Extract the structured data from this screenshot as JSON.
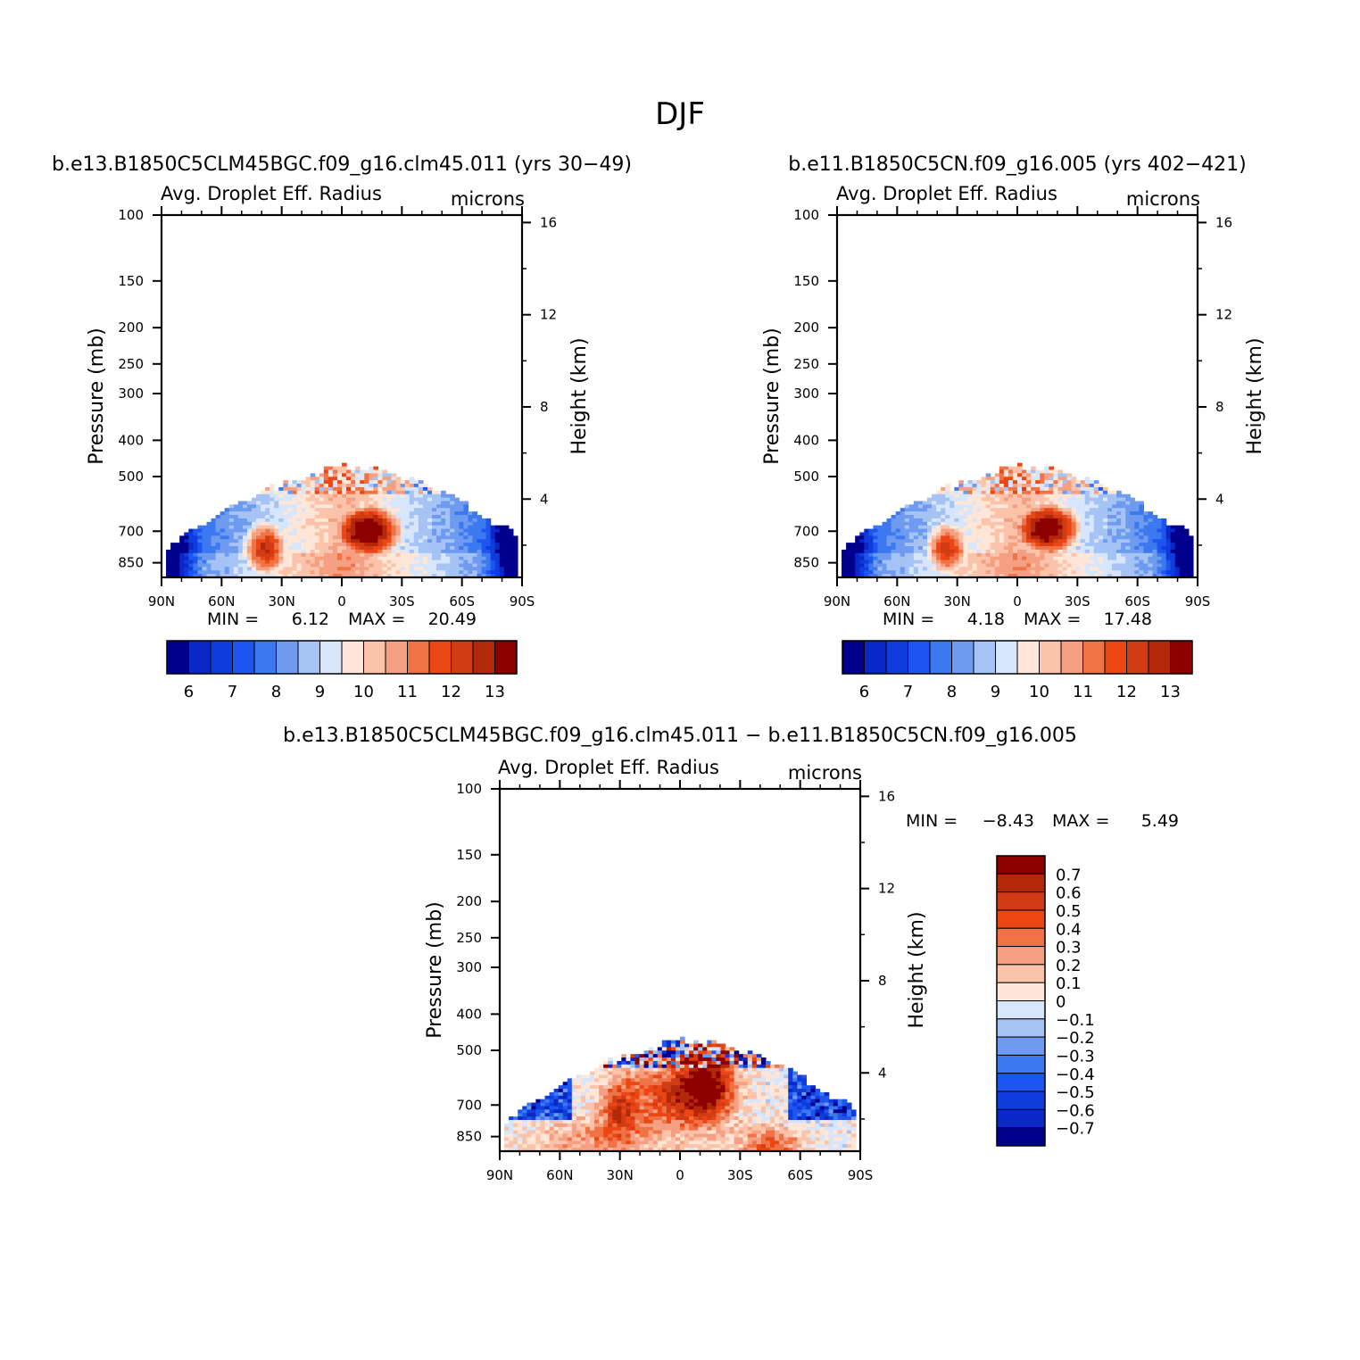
{
  "title": "DJF",
  "panels": [
    {
      "id": "left",
      "case_title": "b.e13.B1850C5CLM45BGC.f09_g16.clm45.011 (yrs 30−49)",
      "variable": "Avg. Droplet Eff. Radius",
      "units": "microns",
      "ylabel_left": "Pressure (mb)",
      "ylabel_right": "Height (km)",
      "min_label": "MIN =",
      "min_value": "6.12",
      "max_label": "MAX =",
      "max_value": "20.49"
    },
    {
      "id": "right",
      "case_title": "b.e11.B1850C5CN.f09_g16.005 (yrs 402−421)",
      "variable": "Avg. Droplet Eff. Radius",
      "units": "microns",
      "ylabel_left": "Pressure (mb)",
      "ylabel_right": "Height (km)",
      "min_label": "MIN =",
      "min_value": "4.18",
      "max_label": "MAX =",
      "max_value": "17.48"
    },
    {
      "id": "diff",
      "case_title": "b.e13.B1850C5CLM45BGC.f09_g16.clm45.011 − b.e11.B1850C5CN.f09_g16.005",
      "variable": "Avg. Droplet Eff. Radius",
      "units": "microns",
      "ylabel_left": "Pressure (mb)",
      "ylabel_right": "Height (km)",
      "min_label": "MIN =",
      "min_value": "−8.43",
      "max_label": "MAX =",
      "max_value": "5.49"
    }
  ],
  "chart_data": [
    {
      "type": "heatmap",
      "title": "b.e13.B1850C5CLM45BGC.f09_g16.clm45.011 (yrs 30−49)",
      "subtitle": "Avg. Droplet Eff. Radius",
      "units": "microns",
      "xlabel": "",
      "ylabel": "Pressure (mb)",
      "ylabel_right": "Height (km)",
      "x_ticks": [
        "90N",
        "60N",
        "30N",
        "0",
        "30S",
        "60S",
        "90S"
      ],
      "y_ticks": [
        100,
        150,
        200,
        250,
        300,
        400,
        500,
        700,
        850
      ],
      "y_right_ticks": [
        4,
        8,
        12,
        16
      ],
      "y_scale": "log",
      "colorbar_ticks": [
        "6",
        "7",
        "8",
        "9",
        "10",
        "11",
        "12",
        "13"
      ],
      "min": 6.12,
      "max": 20.49,
      "field": {
        "peak_lat": -13,
        "peak_p": 700,
        "peak_value": 14,
        "second_lat": 38,
        "second_value": 12.5,
        "cloud_top_mb": 450
      }
    },
    {
      "type": "heatmap",
      "title": "b.e11.B1850C5CN.f09_g16.005 (yrs 402−421)",
      "subtitle": "Avg. Droplet Eff. Radius",
      "units": "microns",
      "xlabel": "",
      "ylabel": "Pressure (mb)",
      "ylabel_right": "Height (km)",
      "x_ticks": [
        "90N",
        "60N",
        "30N",
        "0",
        "30S",
        "60S",
        "90S"
      ],
      "y_ticks": [
        100,
        150,
        200,
        250,
        300,
        400,
        500,
        700,
        850
      ],
      "y_right_ticks": [
        4,
        8,
        12,
        16
      ],
      "y_scale": "log",
      "colorbar_ticks": [
        "6",
        "7",
        "8",
        "9",
        "10",
        "11",
        "12",
        "13"
      ],
      "min": 4.18,
      "max": 17.48,
      "field": {
        "peak_lat": -15,
        "peak_p": 690,
        "peak_value": 13.8,
        "second_lat": 35,
        "second_value": 12.2,
        "cloud_top_mb": 450
      }
    },
    {
      "type": "heatmap",
      "title": "b.e13.B1850C5CLM45BGC.f09_g16.clm45.011 − b.e11.B1850C5CN.f09_g16.005",
      "subtitle": "Avg. Droplet Eff. Radius",
      "units": "microns",
      "xlabel": "",
      "ylabel": "Pressure (mb)",
      "ylabel_right": "Height (km)",
      "x_ticks": [
        "90N",
        "60N",
        "30N",
        "0",
        "30S",
        "60S",
        "90S"
      ],
      "y_ticks": [
        100,
        150,
        200,
        250,
        300,
        400,
        500,
        700,
        850
      ],
      "y_right_ticks": [
        4,
        8,
        12,
        16
      ],
      "y_scale": "log",
      "colorbar_ticks": [
        "0.7",
        "0.6",
        "0.5",
        "0.4",
        "0.3",
        "0.2",
        "0.1",
        "0",
        "−0.1",
        "−0.2",
        "−0.3",
        "−0.4",
        "−0.5",
        "−0.6",
        "−0.7"
      ],
      "min": -8.43,
      "max": 5.49,
      "field": {
        "cloud_top_mb": 450
      }
    }
  ],
  "colors": {
    "palette": [
      "#00008c",
      "#0a28c8",
      "#0f3cdc",
      "#1e55f0",
      "#3c78f0",
      "#6e9bf0",
      "#a5c3f5",
      "#d7e6fa",
      "#ffe6d7",
      "#fac3aa",
      "#f5a082",
      "#f07346",
      "#eb4614",
      "#d23c14",
      "#b4280a",
      "#8c0000"
    ]
  }
}
